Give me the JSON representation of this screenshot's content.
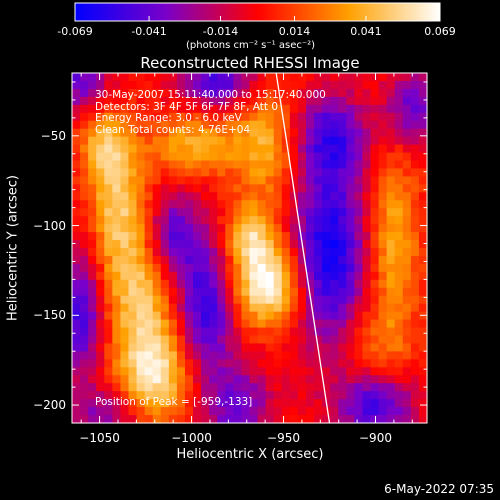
{
  "chart_data": {
    "type": "heatmap",
    "title": "Reconstructed RHESSI Image",
    "xlabel": "Heliocentric X (arcsec)",
    "ylabel": "Heliocentric Y (arcsec)",
    "xlim": [
      -1065,
      -872
    ],
    "ylim": [
      -210,
      -15
    ],
    "x_ticks": [
      -1050,
      -1000,
      -950,
      -900
    ],
    "y_ticks": [
      -50,
      -100,
      -150,
      -200
    ],
    "colorbar": {
      "ticks": [
        "-0.069",
        "-0.041",
        "-0.014",
        "0.014",
        "0.041",
        "0.069"
      ],
      "range": [
        -0.069,
        0.069
      ],
      "unit_label": "(photons cm⁻² s⁻¹ asec⁻²)",
      "colormap": [
        "#0000ff",
        "#7a00c8",
        "#ff0000",
        "#ffa000",
        "#ffffff"
      ]
    },
    "info_lines": [
      "30-May-2007 15:11:40.000 to 15:17:40.000",
      "Detectors: 3F 4F 5F 6F 7F 8F, Att 0",
      "Energy Range: 3.0 - 6.0 keV",
      "Clean     Total counts: 4.76E+04"
    ],
    "peak_label": "Position of Peak = [-959,-133]",
    "peak": {
      "x": -959,
      "y": -133
    },
    "limb_line": [
      {
        "x": -954,
        "y": -15
      },
      {
        "x": -925,
        "y": -210
      }
    ],
    "blobs": [
      {
        "x": -1020,
        "y": -182,
        "sx": 14,
        "sy": 20,
        "amp": 0.06
      },
      {
        "x": -1028,
        "y": -140,
        "sx": 12,
        "sy": 22,
        "amp": 0.04
      },
      {
        "x": -1040,
        "y": -90,
        "sx": 11,
        "sy": 28,
        "amp": 0.048
      },
      {
        "x": -1048,
        "y": -55,
        "sx": 9,
        "sy": 14,
        "amp": 0.035
      },
      {
        "x": -1000,
        "y": -55,
        "sx": 16,
        "sy": 12,
        "amp": 0.038
      },
      {
        "x": -959,
        "y": -133,
        "sx": 14,
        "sy": 16,
        "amp": 0.069
      },
      {
        "x": -968,
        "y": -105,
        "sx": 10,
        "sy": 12,
        "amp": 0.045
      },
      {
        "x": -960,
        "y": -55,
        "sx": 14,
        "sy": 22,
        "amp": 0.04
      },
      {
        "x": -890,
        "y": -110,
        "sx": 10,
        "sy": 34,
        "amp": 0.04
      },
      {
        "x": -900,
        "y": -165,
        "sx": 14,
        "sy": 14,
        "amp": 0.02
      },
      {
        "x": -992,
        "y": -145,
        "sx": 11,
        "sy": 28,
        "amp": -0.055
      },
      {
        "x": -1010,
        "y": -105,
        "sx": 9,
        "sy": 16,
        "amp": -0.04
      },
      {
        "x": -925,
        "y": -115,
        "sx": 14,
        "sy": 36,
        "amp": -0.065
      },
      {
        "x": -925,
        "y": -50,
        "sx": 14,
        "sy": 16,
        "amp": -0.045
      },
      {
        "x": -1060,
        "y": -150,
        "sx": 8,
        "sy": 25,
        "amp": -0.05
      },
      {
        "x": -1060,
        "y": -20,
        "sx": 10,
        "sy": 12,
        "amp": -0.04
      },
      {
        "x": -985,
        "y": -20,
        "sx": 14,
        "sy": 10,
        "amp": -0.05
      },
      {
        "x": -1045,
        "y": -205,
        "sx": 14,
        "sy": 10,
        "amp": -0.03
      },
      {
        "x": -975,
        "y": -200,
        "sx": 12,
        "sy": 14,
        "amp": -0.04
      },
      {
        "x": -900,
        "y": -200,
        "sx": 14,
        "sy": 12,
        "amp": -0.05
      },
      {
        "x": -880,
        "y": -35,
        "sx": 10,
        "sy": 14,
        "amp": -0.04
      }
    ]
  },
  "footer_timestamp": "6-May-2022 07:35"
}
